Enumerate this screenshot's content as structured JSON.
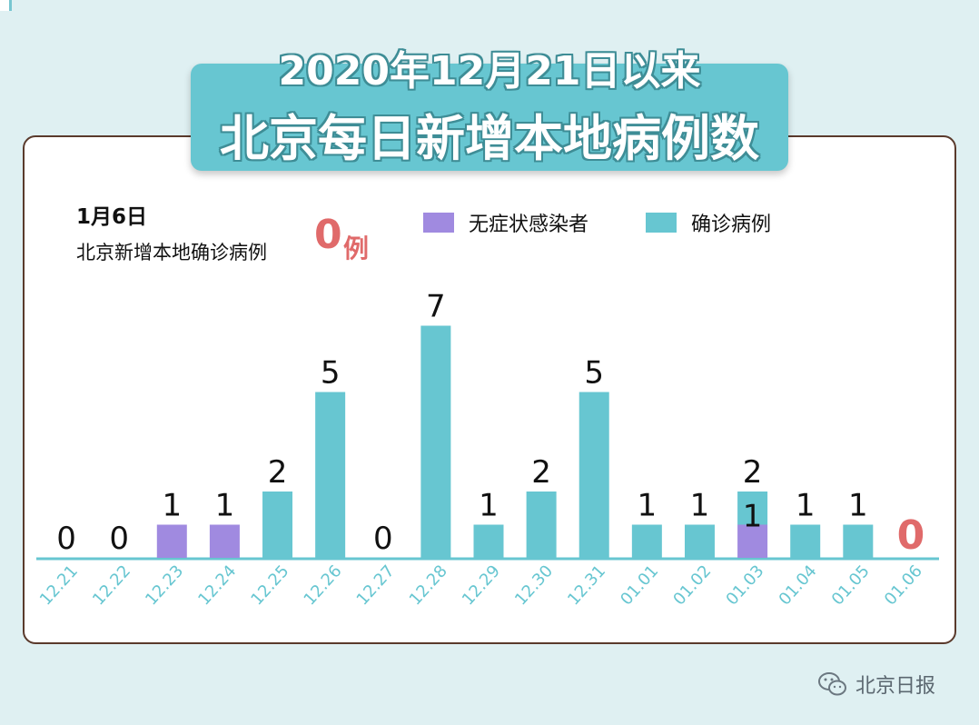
{
  "header": {
    "title_line_1": "2020年12月21日以来",
    "title_line_2": "北京每日新增本地病例数"
  },
  "note": {
    "date": "1月6日",
    "text": "北京新增本地确诊病例",
    "count": "0",
    "unit": "例"
  },
  "legend": {
    "asymptomatic": "无症状感染者",
    "confirmed": "确诊病例"
  },
  "watermark": {
    "label": "北京日报"
  },
  "colors": {
    "confirmed": "#67c6d1",
    "asymptomatic": "#a08ae0",
    "highlight": "#e06a6a",
    "axis": "#67c6d1"
  },
  "chart_data": {
    "type": "bar",
    "stacked": true,
    "categories": [
      "12.21",
      "12.22",
      "12.23",
      "12.24",
      "12.25",
      "12.26",
      "12.27",
      "12.28",
      "12.29",
      "12.30",
      "12.31",
      "01.01",
      "01.02",
      "01.03",
      "01.04",
      "01.05",
      "01.06"
    ],
    "series": [
      {
        "name": "无症状感染者",
        "values": [
          0,
          0,
          1,
          1,
          0,
          0,
          0,
          0,
          0,
          0,
          0,
          0,
          0,
          1,
          0,
          0,
          0
        ]
      },
      {
        "name": "确诊病例",
        "values": [
          0,
          0,
          0,
          0,
          2,
          5,
          0,
          7,
          1,
          2,
          5,
          1,
          1,
          1,
          1,
          1,
          0
        ]
      }
    ],
    "labels": [
      "0",
      "0",
      "1",
      "1",
      "2",
      "5",
      "0",
      "7",
      "1",
      "2",
      "5",
      "1",
      "1",
      "2",
      "1",
      "1",
      "0"
    ],
    "segment_labels": [
      {
        "category": "01.03",
        "text": "1"
      }
    ],
    "ylim": [
      0,
      7
    ],
    "legend_position": "top-right"
  }
}
